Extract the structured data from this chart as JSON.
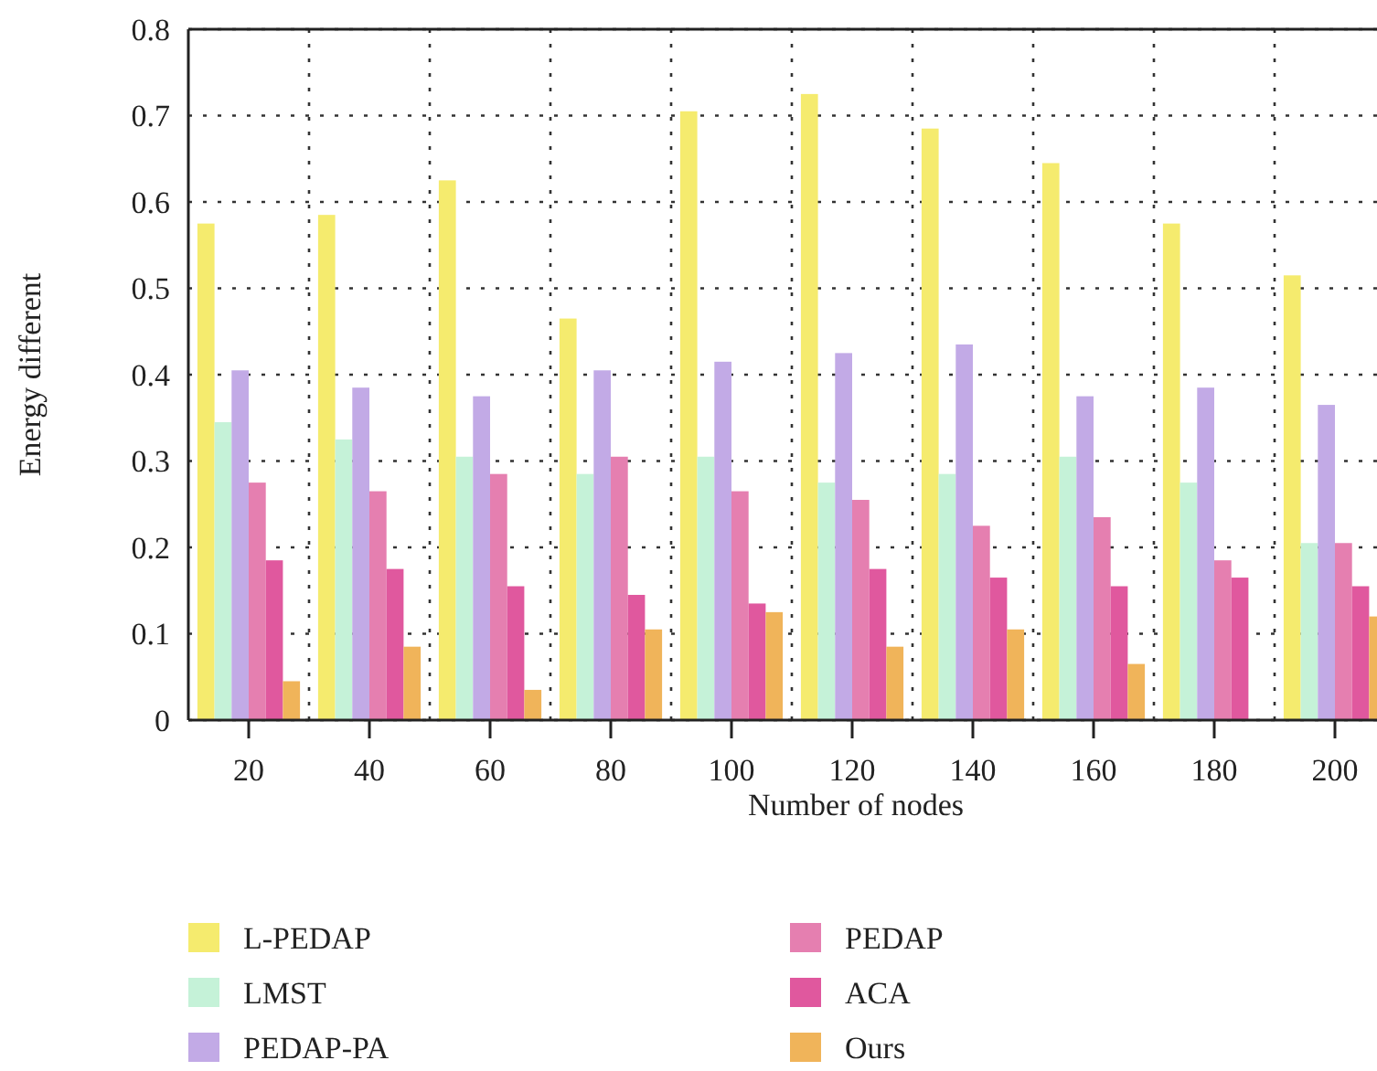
{
  "chart_data": {
    "type": "bar",
    "xlabel": "Number of nodes",
    "ylabel": "Energy different",
    "categories": [
      "20",
      "40",
      "60",
      "80",
      "100",
      "120",
      "140",
      "160",
      "180",
      "200"
    ],
    "series": [
      {
        "name": "L-PEDAP",
        "color": "#f5eb6e",
        "values": [
          0.575,
          0.585,
          0.625,
          0.465,
          0.705,
          0.725,
          0.685,
          0.645,
          0.575,
          0.515
        ]
      },
      {
        "name": "LMST",
        "color": "#c5f2d8",
        "values": [
          0.345,
          0.325,
          0.305,
          0.285,
          0.305,
          0.275,
          0.285,
          0.305,
          0.275,
          0.205
        ]
      },
      {
        "name": "PEDAP-PA",
        "color": "#c2aae6",
        "values": [
          0.405,
          0.385,
          0.375,
          0.405,
          0.415,
          0.425,
          0.435,
          0.375,
          0.385,
          0.365
        ]
      },
      {
        "name": "PEDAP",
        "color": "#e57fb0",
        "values": [
          0.275,
          0.265,
          0.285,
          0.305,
          0.265,
          0.255,
          0.225,
          0.235,
          0.185,
          0.205
        ]
      },
      {
        "name": "ACA",
        "color": "#e0589e",
        "values": [
          0.185,
          0.175,
          0.155,
          0.145,
          0.135,
          0.175,
          0.165,
          0.155,
          0.165,
          0.155
        ]
      },
      {
        "name": "Ours",
        "color": "#f0b45a",
        "values": [
          0.045,
          0.085,
          0.035,
          0.105,
          0.125,
          0.085,
          0.105,
          0.065,
          null,
          0.12
        ]
      }
    ],
    "ylim": [
      0,
      0.8
    ],
    "yticks": [
      0,
      0.1,
      0.2,
      0.3,
      0.4,
      0.5,
      0.6,
      0.7,
      0.8
    ],
    "grid": true,
    "legend": "bottom"
  }
}
